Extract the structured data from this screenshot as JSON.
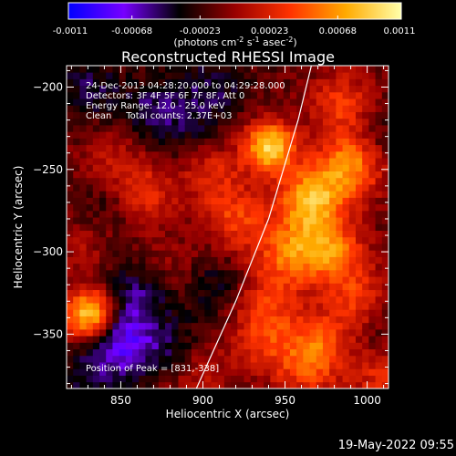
{
  "figure_date": "19-May-2022 09:55",
  "colorbar": {
    "ticks": [
      "-0.0011",
      "-0.00068",
      "-0.00023",
      "0.00023",
      "0.00068",
      "0.0011"
    ],
    "tick_values": [
      -0.0011,
      -0.00068,
      -0.00023,
      0.00023,
      0.00068,
      0.0011
    ],
    "range": [
      -0.0011,
      0.0011
    ],
    "unit_main": "(photons cm",
    "unit_sup1": "-2",
    "unit_mid1": " s",
    "unit_sup2": "-1",
    "unit_mid2": " asec",
    "unit_sup3": "-2",
    "unit_end": ")",
    "colors": [
      "#0000ff",
      "#7700ff",
      "#000000",
      "#990000",
      "#ff3300",
      "#ffaa00",
      "#ffffaa"
    ]
  },
  "chart_data": {
    "type": "heatmap",
    "title": "Reconstructed RHESSI Image",
    "xlabel": "Heliocentric X (arcsec)",
    "ylabel": "Heliocentric Y (arcsec)",
    "xlim": [
      817,
      1013
    ],
    "ylim": [
      -383,
      -187
    ],
    "x_ticks": [
      850,
      900,
      950,
      1000
    ],
    "y_ticks": [
      -350,
      -300,
      -250,
      -200
    ],
    "x_tick_labels": [
      "850",
      "900",
      "950",
      "1000"
    ],
    "y_tick_labels": [
      "−350",
      "−300",
      "−250",
      "−200"
    ],
    "annotations": [
      "24-Dec-2013 04:28:20.000 to 04:29:28.000",
      "Detectors: 3F 4F 5F 6F 7F 8F, Att 0",
      "Energy Range: 12.0 - 25.0 keV",
      "Clean     Total counts: 2.37E+03"
    ],
    "peak_label": "Position of Peak = [831,-338]",
    "peak": [
      831,
      -338
    ],
    "limb_curve": [
      [
        896,
        -383
      ],
      [
        920,
        -330
      ],
      [
        940,
        -280
      ],
      [
        958,
        -220
      ],
      [
        966,
        -187
      ]
    ],
    "sources": [
      {
        "x": 831,
        "y": -338,
        "value": 0.0011
      },
      {
        "x": 941,
        "y": -236,
        "value": 0.00105
      },
      {
        "x": 966,
        "y": -268,
        "value": 0.0009
      },
      {
        "x": 990,
        "y": -247,
        "value": 0.0008
      },
      {
        "x": 978,
        "y": -300,
        "value": 0.0007
      },
      {
        "x": 920,
        "y": -280,
        "value": 0.0005
      },
      {
        "x": 952,
        "y": -300,
        "value": 0.0006
      },
      {
        "x": 995,
        "y": -330,
        "value": 0.0005
      },
      {
        "x": 865,
        "y": -265,
        "value": 0.0004
      },
      {
        "x": 845,
        "y": -245,
        "value": 0.0003
      },
      {
        "x": 905,
        "y": -250,
        "value": 0.0004
      },
      {
        "x": 985,
        "y": -210,
        "value": 0.0005
      },
      {
        "x": 940,
        "y": -330,
        "value": 0.0004
      },
      {
        "x": 970,
        "y": -355,
        "value": 0.0005
      },
      {
        "x": 935,
        "y": -355,
        "value": 0.0004
      },
      {
        "x": 895,
        "y": -375,
        "value": 0.0003
      },
      {
        "x": 1008,
        "y": -375,
        "value": 0.0004
      },
      {
        "x": 880,
        "y": -310,
        "value": 0.0002
      },
      {
        "x": 826,
        "y": -295,
        "value": 0.0002
      },
      {
        "x": 962,
        "y": -372,
        "value": 0.0004
      },
      {
        "x": 850,
        "y": -355,
        "value": -0.0006
      },
      {
        "x": 860,
        "y": -325,
        "value": -0.0004
      },
      {
        "x": 880,
        "y": -360,
        "value": -0.0003
      },
      {
        "x": 830,
        "y": -200,
        "value": -0.0003
      },
      {
        "x": 870,
        "y": -215,
        "value": -0.00035
      },
      {
        "x": 905,
        "y": -200,
        "value": -0.0003
      },
      {
        "x": 840,
        "y": -270,
        "value": -0.0002
      },
      {
        "x": 905,
        "y": -320,
        "value": -0.00025
      },
      {
        "x": 1005,
        "y": -230,
        "value": -0.0002
      },
      {
        "x": 1005,
        "y": -345,
        "value": -0.0002
      },
      {
        "x": 830,
        "y": -375,
        "value": -0.00025
      },
      {
        "x": 895,
        "y": -230,
        "value": -0.0002
      }
    ]
  }
}
